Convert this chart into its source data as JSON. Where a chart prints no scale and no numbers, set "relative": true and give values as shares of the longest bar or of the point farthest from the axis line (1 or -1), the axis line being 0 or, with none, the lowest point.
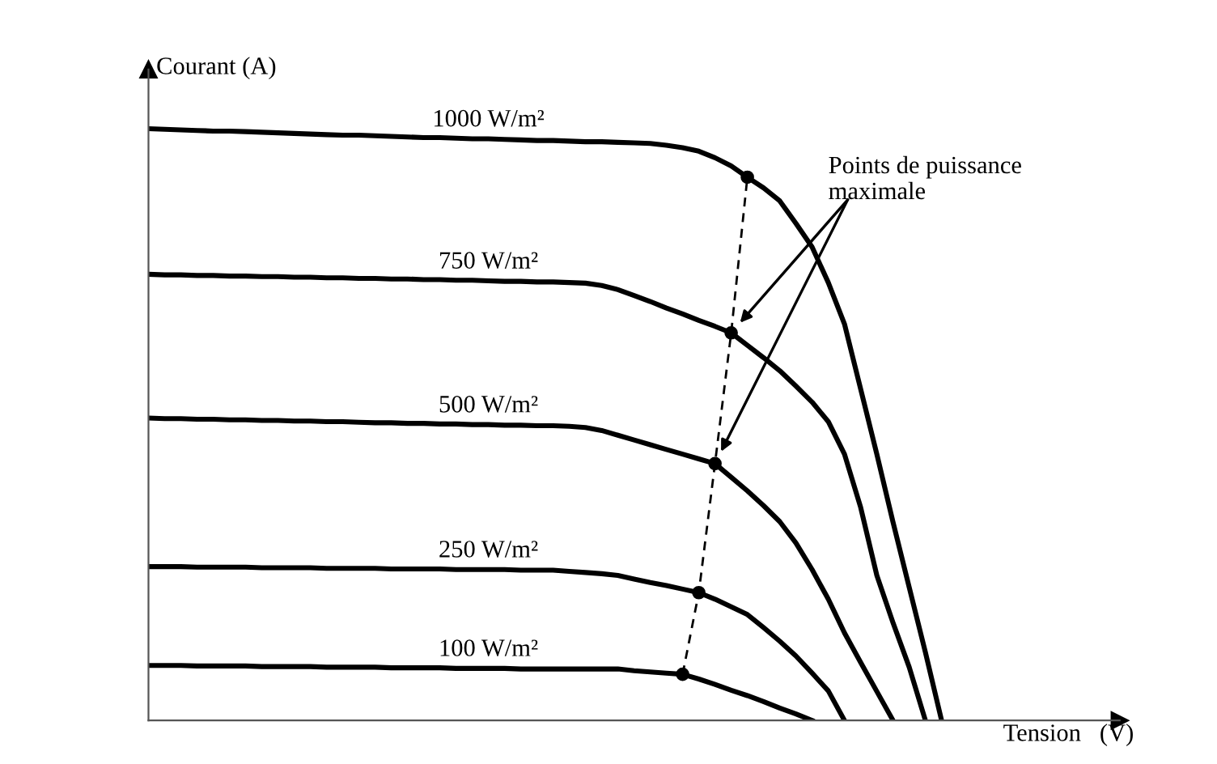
{
  "chart_data": {
    "type": "line",
    "relative": true,
    "xlabel": "Tension   (V)",
    "ylabel": "Courant (A)",
    "grid": false,
    "legend": false,
    "marker": "none",
    "line_style": "solid",
    "categories": [
      null,
      null,
      null,
      null,
      null,
      null,
      null,
      null,
      null,
      null,
      null,
      null,
      null,
      null,
      null,
      null,
      null,
      null,
      null,
      null,
      null,
      null,
      null,
      null,
      null,
      null,
      null,
      null,
      null,
      null,
      null,
      null,
      null,
      null,
      null,
      null,
      null,
      null,
      null,
      null,
      null,
      null,
      null,
      null,
      null,
      null,
      null,
      null,
      null,
      null
    ],
    "series": [
      {
        "name": "1000 W/m²",
        "color": "#000000",
        "values": [
          1,
          0.999,
          0.998,
          0.997,
          0.996,
          0.996,
          0.995,
          0.994,
          0.993,
          0.992,
          0.991,
          0.99,
          0.989,
          0.989,
          0.988,
          0.987,
          0.986,
          0.985,
          0.985,
          0.984,
          0.983,
          0.983,
          0.982,
          0.981,
          0.98,
          0.98,
          0.979,
          0.978,
          0.978,
          0.977,
          0.976,
          0.975,
          0.972,
          0.968,
          0.962,
          0.951,
          0.937,
          0.918,
          0.9,
          0.878,
          0.84,
          0.8,
          0.74,
          0.67,
          0.56,
          0.45,
          0.335,
          0.225,
          0.115,
          0
        ]
      },
      {
        "name": "750 W/m²",
        "color": "#000000",
        "values": [
          0.754,
          0.753,
          0.753,
          0.752,
          0.752,
          0.751,
          0.751,
          0.75,
          0.75,
          0.749,
          0.749,
          0.748,
          0.748,
          0.747,
          0.747,
          0.746,
          0.746,
          0.745,
          0.745,
          0.744,
          0.744,
          0.743,
          0.742,
          0.742,
          0.741,
          0.741,
          0.74,
          0.739,
          0.735,
          0.728,
          0.718,
          0.708,
          0.697,
          0.687,
          0.676,
          0.666,
          0.655,
          0.634,
          0.613,
          0.591,
          0.565,
          0.538,
          0.505,
          0.45,
          0.36,
          0.245,
          0.165,
          0.09,
          0,
          null
        ]
      },
      {
        "name": "500 W/m²",
        "color": "#000000",
        "values": [
          0.511,
          0.51,
          0.51,
          0.509,
          0.509,
          0.508,
          0.508,
          0.507,
          0.507,
          0.506,
          0.506,
          0.505,
          0.505,
          0.504,
          0.503,
          0.503,
          0.502,
          0.502,
          0.501,
          0.501,
          0.5,
          0.5,
          0.499,
          0.499,
          0.498,
          0.498,
          0.497,
          0.495,
          0.49,
          0.482,
          0.474,
          0.466,
          0.458,
          0.45,
          0.442,
          0.434,
          0.411,
          0.388,
          0.363,
          0.336,
          0.3,
          0.255,
          0.205,
          0.148,
          0.098,
          0.049,
          0,
          null,
          null,
          null
        ]
      },
      {
        "name": "250 W/m²",
        "color": "#000000",
        "values": [
          0.26,
          0.26,
          0.26,
          0.259,
          0.259,
          0.259,
          0.259,
          0.258,
          0.258,
          0.258,
          0.258,
          0.257,
          0.257,
          0.257,
          0.257,
          0.256,
          0.256,
          0.256,
          0.256,
          0.255,
          0.255,
          0.255,
          0.255,
          0.254,
          0.254,
          0.254,
          0.252,
          0.25,
          0.248,
          0.245,
          0.239,
          0.233,
          0.228,
          0.222,
          0.216,
          0.205,
          0.192,
          0.179,
          0.157,
          0.134,
          0.109,
          0.08,
          0.05,
          0,
          null,
          null,
          null,
          null,
          null,
          null
        ]
      },
      {
        "name": "100 W/m²",
        "color": "#000000",
        "values": [
          0.093,
          0.093,
          0.093,
          0.092,
          0.092,
          0.092,
          0.092,
          0.091,
          0.091,
          0.091,
          0.091,
          0.09,
          0.09,
          0.09,
          0.09,
          0.089,
          0.089,
          0.089,
          0.089,
          0.088,
          0.088,
          0.088,
          0.088,
          0.087,
          0.087,
          0.087,
          0.087,
          0.087,
          0.087,
          0.087,
          0.084,
          0.082,
          0.08,
          0.078,
          0.07,
          0.061,
          0.051,
          0.042,
          0.032,
          0.021,
          0.011,
          0,
          null,
          null,
          null,
          null,
          null,
          null,
          null,
          null
        ]
      },
      {
        "type": "line",
        "line_style": "dashed",
        "marker": "circle",
        "color": "#000000",
        "values": [
          null,
          null,
          null,
          null,
          null,
          null,
          null,
          null,
          null,
          null,
          null,
          null,
          null,
          null,
          null,
          null,
          null,
          null,
          null,
          null,
          null,
          null,
          null,
          null,
          null,
          null,
          null,
          null,
          null,
          null,
          null,
          null,
          null,
          0.078,
          0.216,
          0.434,
          0.655,
          0.918,
          null,
          null,
          null,
          null,
          null,
          null,
          null,
          null,
          null,
          null,
          null,
          null
        ]
      }
    ],
    "annotations": [
      "Points de puissance\nmaximale"
    ]
  }
}
